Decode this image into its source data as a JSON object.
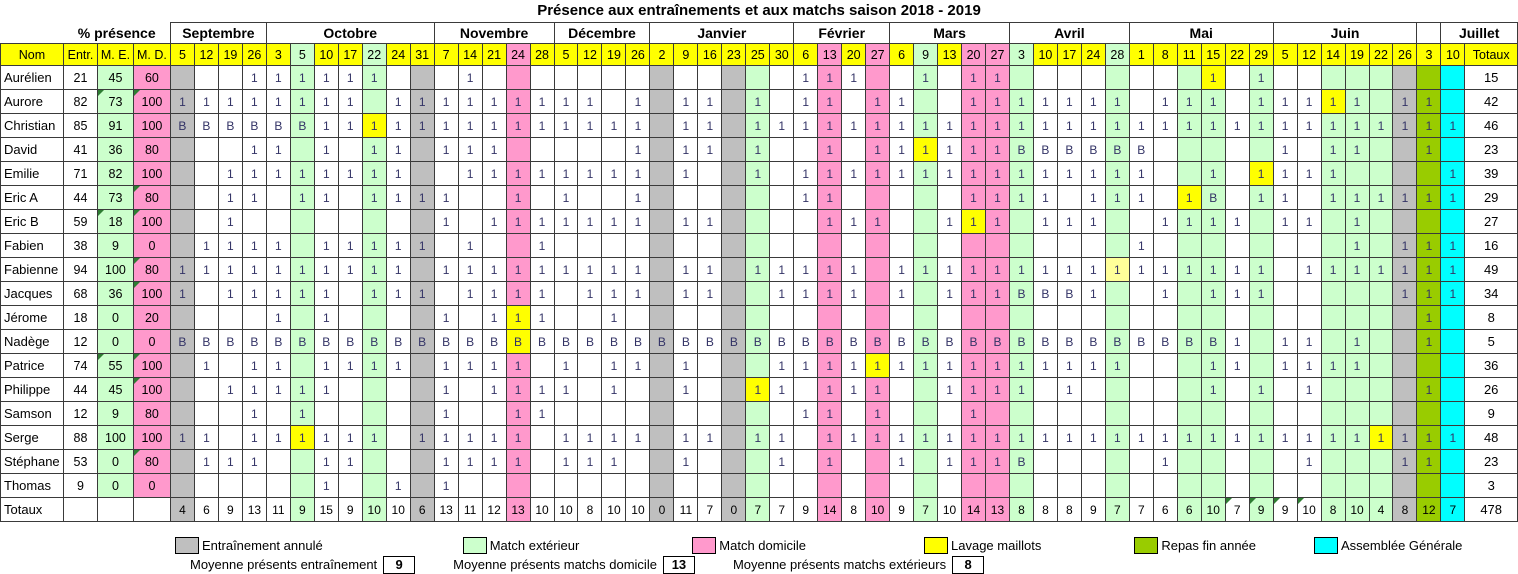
{
  "title": "Présence aux entraînements et aux matchs saison 2018 - 2019",
  "pct_presence_label": "% présence",
  "left_headers": [
    "Nom",
    "Entr.",
    "M. E.",
    "M. D."
  ],
  "totaux_col_header": "Totaux",
  "totals_row_label": "Totaux",
  "colors": {
    "yellow": "#FFFF00",
    "paleyellow": "#FFFF99",
    "green": "#CCFFCC",
    "pink": "#FF99CC",
    "gray": "#BFBFBF",
    "olive": "#99CC00",
    "cyan": "#00FFFF",
    "white": "#FFFFFF"
  },
  "months": [
    {
      "label": "Septembre",
      "span": 4
    },
    {
      "label": "Octobre",
      "span": 7
    },
    {
      "label": "Novembre",
      "span": 5
    },
    {
      "label": "Décembre",
      "span": 4
    },
    {
      "label": "Janvier",
      "span": 6
    },
    {
      "label": "Février",
      "span": 4
    },
    {
      "label": "Mars",
      "span": 5
    },
    {
      "label": "Avril",
      "span": 5
    },
    {
      "label": "Mai",
      "span": 6
    },
    {
      "label": "Juin",
      "span": 6
    },
    {
      "label": "",
      "span": 1
    },
    {
      "label": "Juillet",
      "span": 2
    }
  ],
  "columns": [
    {
      "label": "5",
      "body": "gray",
      "head": "yellow"
    },
    {
      "label": "12",
      "body": "white",
      "head": "yellow"
    },
    {
      "label": "19",
      "body": "white",
      "head": "yellow"
    },
    {
      "label": "26",
      "body": "white",
      "head": "yellow"
    },
    {
      "label": "3",
      "body": "white",
      "head": "yellow"
    },
    {
      "label": "5",
      "body": "green",
      "head": "green"
    },
    {
      "label": "10",
      "body": "white",
      "head": "yellow"
    },
    {
      "label": "17",
      "body": "white",
      "head": "yellow"
    },
    {
      "label": "22",
      "body": "green",
      "head": "green"
    },
    {
      "label": "24",
      "body": "white",
      "head": "yellow"
    },
    {
      "label": "31",
      "body": "gray",
      "head": "yellow"
    },
    {
      "label": "7",
      "body": "white",
      "head": "yellow"
    },
    {
      "label": "14",
      "body": "white",
      "head": "yellow"
    },
    {
      "label": "21",
      "body": "white",
      "head": "yellow"
    },
    {
      "label": "24",
      "body": "pink",
      "head": "pink"
    },
    {
      "label": "28",
      "body": "white",
      "head": "yellow"
    },
    {
      "label": "5",
      "body": "white",
      "head": "yellow"
    },
    {
      "label": "12",
      "body": "white",
      "head": "yellow"
    },
    {
      "label": "19",
      "body": "white",
      "head": "yellow"
    },
    {
      "label": "26",
      "body": "white",
      "head": "yellow"
    },
    {
      "label": "2",
      "body": "gray",
      "head": "yellow"
    },
    {
      "label": "9",
      "body": "white",
      "head": "yellow"
    },
    {
      "label": "16",
      "body": "white",
      "head": "yellow"
    },
    {
      "label": "23",
      "body": "gray",
      "head": "yellow"
    },
    {
      "label": "25",
      "body": "green",
      "head": "yellow"
    },
    {
      "label": "30",
      "body": "white",
      "head": "yellow"
    },
    {
      "label": "6",
      "body": "white",
      "head": "yellow"
    },
    {
      "label": "13",
      "body": "pink",
      "head": "pink"
    },
    {
      "label": "20",
      "body": "white",
      "head": "yellow"
    },
    {
      "label": "27",
      "body": "pink",
      "head": "pink"
    },
    {
      "label": "6",
      "body": "white",
      "head": "yellow"
    },
    {
      "label": "9",
      "body": "green",
      "head": "green"
    },
    {
      "label": "13",
      "body": "white",
      "head": "yellow"
    },
    {
      "label": "20",
      "body": "pink",
      "head": "pink"
    },
    {
      "label": "27",
      "body": "pink",
      "head": "pink"
    },
    {
      "label": "3",
      "body": "green",
      "head": "green"
    },
    {
      "label": "10",
      "body": "white",
      "head": "yellow"
    },
    {
      "label": "17",
      "body": "white",
      "head": "yellow"
    },
    {
      "label": "24",
      "body": "white",
      "head": "yellow"
    },
    {
      "label": "28",
      "body": "green",
      "head": "green"
    },
    {
      "label": "1",
      "body": "white",
      "head": "yellow"
    },
    {
      "label": "8",
      "body": "white",
      "head": "yellow"
    },
    {
      "label": "11",
      "body": "green",
      "head": "yellow"
    },
    {
      "label": "15",
      "body": "green",
      "head": "yellow"
    },
    {
      "label": "22",
      "body": "white",
      "head": "yellow"
    },
    {
      "label": "29",
      "body": "green",
      "head": "yellow"
    },
    {
      "label": "5",
      "body": "white",
      "head": "yellow"
    },
    {
      "label": "12",
      "body": "white",
      "head": "yellow"
    },
    {
      "label": "14",
      "body": "green",
      "head": "yellow"
    },
    {
      "label": "19",
      "body": "green",
      "head": "yellow"
    },
    {
      "label": "22",
      "body": "green",
      "head": "yellow"
    },
    {
      "label": "26",
      "body": "gray",
      "head": "yellow"
    },
    {
      "label": "3",
      "body": "olive",
      "head": "yellow"
    },
    {
      "label": "10",
      "body": "cyan",
      "head": "yellow"
    }
  ],
  "rows": [
    {
      "name": "Aurélien",
      "entr": "21",
      "me": "45",
      "md": "60",
      "total": "15",
      "corners": [],
      "ones": [
        3,
        4,
        5,
        6,
        7,
        8,
        12,
        26,
        27,
        28,
        31,
        33,
        34,
        43,
        45
      ],
      "bs": [],
      "cell_colors": {
        "43": "yellow"
      }
    },
    {
      "name": "Aurore",
      "entr": "82",
      "me": "73",
      "md": "100",
      "total": "42",
      "corners": [
        "me",
        "md"
      ],
      "ones": [
        0,
        1,
        2,
        3,
        4,
        5,
        6,
        7,
        9,
        10,
        11,
        12,
        13,
        14,
        15,
        16,
        17,
        19,
        21,
        22,
        24,
        26,
        27,
        29,
        30,
        33,
        34,
        35,
        36,
        37,
        38,
        39,
        41,
        42,
        43,
        45,
        46,
        47,
        48,
        49,
        51,
        52
      ],
      "bs": [],
      "cell_colors": {
        "48": "yellow"
      }
    },
    {
      "name": "Christian",
      "entr": "85",
      "me": "91",
      "md": "100",
      "total": "46",
      "corners": [],
      "ones": [
        6,
        7,
        8,
        9,
        10,
        11,
        12,
        13,
        14,
        15,
        16,
        17,
        18,
        19,
        21,
        22,
        24,
        25,
        26,
        27,
        28,
        29,
        30,
        31,
        32,
        33,
        34,
        35,
        36,
        37,
        38,
        39,
        40,
        41,
        42,
        43,
        44,
        45,
        46,
        47,
        48,
        49,
        50,
        51,
        52,
        53
      ],
      "bs": [
        0,
        1,
        2,
        3,
        4,
        5
      ],
      "cell_colors": {
        "8": "yellow"
      }
    },
    {
      "name": "David",
      "entr": "41",
      "me": "36",
      "md": "80",
      "total": "23",
      "corners": [],
      "ones": [
        3,
        4,
        6,
        8,
        9,
        11,
        12,
        13,
        19,
        21,
        22,
        24,
        27,
        29,
        30,
        31,
        32,
        33,
        34,
        46,
        48,
        49,
        52
      ],
      "bs": [
        35,
        36,
        37,
        38,
        39,
        40
      ],
      "cell_colors": {
        "31": "yellow"
      }
    },
    {
      "name": "Emilie",
      "entr": "71",
      "me": "82",
      "md": "100",
      "total": "39",
      "corners": [],
      "ones": [
        2,
        3,
        4,
        5,
        6,
        7,
        8,
        9,
        12,
        13,
        14,
        15,
        16,
        17,
        18,
        19,
        21,
        24,
        26,
        27,
        28,
        29,
        30,
        31,
        32,
        33,
        34,
        35,
        36,
        37,
        38,
        39,
        40,
        43,
        45,
        46,
        47,
        48,
        53
      ],
      "bs": [],
      "cell_colors": {
        "45": "yellow"
      }
    },
    {
      "name": "Eric A",
      "entr": "44",
      "me": "73",
      "md": "80",
      "total": "29",
      "corners": [
        "md"
      ],
      "ones": [
        2,
        3,
        5,
        6,
        8,
        9,
        10,
        11,
        14,
        16,
        19,
        26,
        27,
        33,
        34,
        35,
        36,
        38,
        39,
        40,
        42,
        45,
        46,
        48,
        49,
        50,
        51,
        52,
        53
      ],
      "bs": [
        43
      ],
      "cell_colors": {
        "42": "yellow"
      }
    },
    {
      "name": "Eric B",
      "entr": "59",
      "me": "18",
      "md": "100",
      "total": "27",
      "corners": [
        "me",
        "md"
      ],
      "ones": [
        2,
        11,
        13,
        14,
        15,
        16,
        17,
        18,
        19,
        21,
        22,
        27,
        28,
        29,
        32,
        33,
        34,
        36,
        37,
        38,
        41,
        42,
        43,
        44,
        46,
        47,
        49
      ],
      "bs": [],
      "cell_colors": {
        "33": "yellow"
      }
    },
    {
      "name": "Fabien",
      "entr": "38",
      "me": "9",
      "md": "0",
      "total": "16",
      "corners": [],
      "ones": [
        1,
        2,
        3,
        4,
        6,
        7,
        8,
        9,
        10,
        12,
        15,
        40,
        49,
        51,
        52,
        53
      ],
      "bs": [],
      "cell_colors": {}
    },
    {
      "name": "Fabienne",
      "entr": "94",
      "me": "100",
      "md": "80",
      "total": "49",
      "corners": [
        "md"
      ],
      "ones": [
        0,
        1,
        2,
        3,
        4,
        5,
        6,
        7,
        8,
        9,
        11,
        12,
        13,
        14,
        15,
        16,
        17,
        18,
        19,
        21,
        22,
        24,
        25,
        26,
        27,
        28,
        30,
        31,
        32,
        33,
        34,
        35,
        36,
        37,
        38,
        39,
        40,
        41,
        42,
        43,
        44,
        45,
        47,
        48,
        49,
        50,
        51,
        52,
        53
      ],
      "bs": [],
      "cell_colors": {
        "39": "paleyellow"
      }
    },
    {
      "name": "Jacques",
      "entr": "68",
      "me": "36",
      "md": "100",
      "total": "34",
      "corners": [
        "md"
      ],
      "ones": [
        0,
        2,
        3,
        4,
        5,
        6,
        8,
        9,
        10,
        12,
        13,
        14,
        15,
        17,
        18,
        19,
        21,
        22,
        25,
        26,
        27,
        28,
        30,
        32,
        33,
        34,
        38,
        41,
        43,
        44,
        45,
        51,
        52,
        53
      ],
      "bs": [
        35,
        36,
        37
      ],
      "cell_colors": {}
    },
    {
      "name": "Jérome",
      "entr": "18",
      "me": "0",
      "md": "20",
      "total": "8",
      "corners": [],
      "ones": [
        4,
        6,
        11,
        13,
        14,
        15,
        18,
        52
      ],
      "bs": [],
      "cell_colors": {
        "14": "yellow"
      }
    },
    {
      "name": "Nadège",
      "entr": "12",
      "me": "0",
      "md": "0",
      "total": "5",
      "corners": [],
      "ones": [
        44,
        46,
        47,
        49,
        52
      ],
      "bs": [
        0,
        1,
        2,
        3,
        4,
        5,
        6,
        7,
        8,
        9,
        10,
        11,
        12,
        13,
        14,
        15,
        16,
        17,
        18,
        19,
        20,
        21,
        22,
        23,
        24,
        25,
        26,
        27,
        28,
        29,
        30,
        31,
        32,
        33,
        34,
        35,
        36,
        37,
        38,
        39,
        40,
        41,
        42,
        43
      ],
      "cell_colors": {
        "14": "yellow"
      }
    },
    {
      "name": "Patrice",
      "entr": "74",
      "me": "55",
      "md": "100",
      "total": "36",
      "corners": [
        "me",
        "md"
      ],
      "ones": [
        1,
        3,
        4,
        6,
        7,
        8,
        9,
        11,
        12,
        13,
        14,
        16,
        18,
        19,
        21,
        25,
        26,
        27,
        28,
        29,
        30,
        31,
        32,
        33,
        34,
        35,
        36,
        37,
        38,
        39,
        43,
        44,
        46,
        47,
        48,
        49
      ],
      "bs": [],
      "cell_colors": {
        "29": "yellow"
      }
    },
    {
      "name": "Philippe",
      "entr": "44",
      "me": "45",
      "md": "100",
      "total": "26",
      "corners": [
        "md"
      ],
      "ones": [
        2,
        3,
        4,
        5,
        6,
        11,
        13,
        14,
        15,
        16,
        18,
        21,
        24,
        25,
        27,
        28,
        29,
        32,
        33,
        34,
        35,
        37,
        43,
        45,
        47,
        52
      ],
      "bs": [],
      "cell_colors": {
        "24": "yellow"
      }
    },
    {
      "name": "Samson",
      "entr": "12",
      "me": "9",
      "md": "80",
      "total": "9",
      "corners": [],
      "ones": [
        3,
        5,
        11,
        14,
        15,
        26,
        27,
        29,
        33
      ],
      "bs": [],
      "cell_colors": {}
    },
    {
      "name": "Serge",
      "entr": "88",
      "me": "100",
      "md": "100",
      "total": "48",
      "corners": [],
      "ones": [
        0,
        1,
        3,
        4,
        5,
        6,
        7,
        8,
        10,
        11,
        12,
        13,
        14,
        16,
        17,
        18,
        19,
        21,
        22,
        24,
        25,
        27,
        28,
        29,
        30,
        31,
        32,
        33,
        34,
        35,
        36,
        37,
        38,
        39,
        40,
        41,
        42,
        43,
        44,
        45,
        46,
        47,
        48,
        49,
        50,
        51,
        52,
        53
      ],
      "bs": [],
      "cell_colors": {
        "5": "yellow",
        "50": "yellow"
      }
    },
    {
      "name": "Stéphane",
      "entr": "53",
      "me": "0",
      "md": "80",
      "total": "23",
      "corners": [
        "md"
      ],
      "ones": [
        1,
        2,
        3,
        6,
        7,
        11,
        12,
        13,
        14,
        16,
        17,
        18,
        21,
        25,
        27,
        30,
        32,
        33,
        34,
        41,
        47,
        51,
        52
      ],
      "bs": [
        35
      ],
      "cell_colors": {}
    },
    {
      "name": "Thomas",
      "entr": "9",
      "me": "0",
      "md": "0",
      "total": "3",
      "corners": [],
      "ones": [
        6,
        9,
        11
      ],
      "bs": [],
      "cell_colors": {}
    }
  ],
  "totals": [
    "4",
    "6",
    "9",
    "13",
    "11",
    "9",
    "15",
    "9",
    "10",
    "10",
    "6",
    "13",
    "11",
    "12",
    "13",
    "10",
    "10",
    "8",
    "10",
    "10",
    "0",
    "11",
    "7",
    "0",
    "7",
    "7",
    "9",
    "14",
    "8",
    "10",
    "9",
    "7",
    "10",
    "14",
    "13",
    "8",
    "8",
    "8",
    "9",
    "7",
    "7",
    "6",
    "6",
    "10",
    "7",
    "9",
    "9",
    "10",
    "8",
    "10",
    "4",
    "8",
    "12",
    "7"
  ],
  "totals_corners": [
    44,
    45,
    46,
    47
  ],
  "grand_total": "478",
  "legend": {
    "items": [
      {
        "color": "gray",
        "label": "Entraînement annulé"
      },
      {
        "color": "green",
        "label": "Match extérieur"
      },
      {
        "color": "pink",
        "label": "Match domicile"
      },
      {
        "color": "yellow",
        "label": "Lavage maillots"
      },
      {
        "color": "olive",
        "label": "Repas fin année"
      },
      {
        "color": "cyan",
        "label": "Assemblée Générale"
      }
    ],
    "averages": [
      {
        "label": "Moyenne présents entraînement",
        "value": "9"
      },
      {
        "label": "Moyenne présents matchs domicile",
        "value": "13"
      },
      {
        "label": "Moyenne présents matchs extérieurs",
        "value": "8"
      }
    ]
  }
}
